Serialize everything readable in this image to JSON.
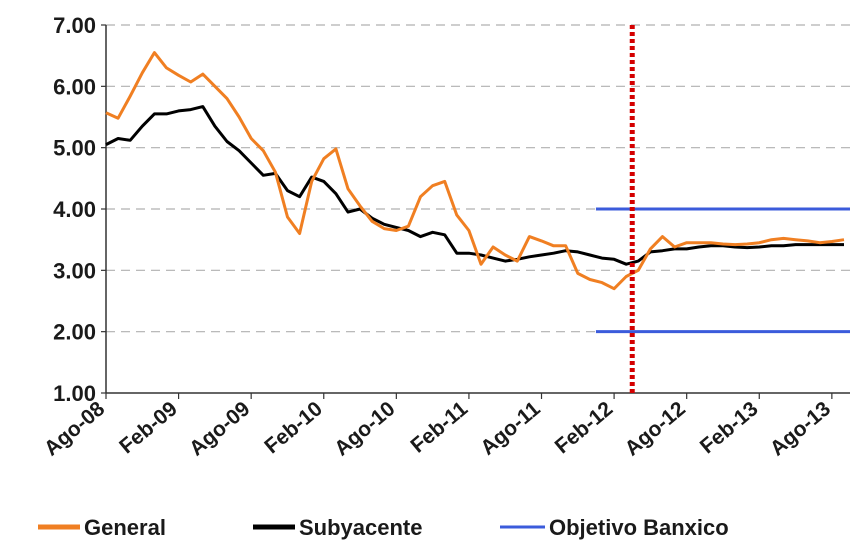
{
  "chart_data": {
    "type": "line",
    "title": "",
    "xlabel": "",
    "ylabel": "",
    "ylim": [
      1.0,
      7.0
    ],
    "yticks": [
      "1.00",
      "2.00",
      "3.00",
      "4.00",
      "5.00",
      "6.00",
      "7.00"
    ],
    "xticks": [
      "Ago-08",
      "Feb-09",
      "Ago-09",
      "Feb-10",
      "Ago-10",
      "Feb-11",
      "Ago-11",
      "Feb-12",
      "Ago-12",
      "Feb-13",
      "Ago-13"
    ],
    "grid": "horizontal dashed",
    "legend_position": "bottom",
    "vertical_marker": {
      "x": 43.5,
      "color": "#d40000",
      "style": "dotted"
    },
    "colors": {
      "general": "#f07f22",
      "subyacente": "#000000",
      "objetivo": "#3b5bdb",
      "marker": "#d40000",
      "grid": "#b0b0b0"
    },
    "series": [
      {
        "name": "General",
        "color": "#f07f22",
        "x": [
          0,
          1,
          2,
          3,
          4,
          5,
          6,
          7,
          8,
          9,
          10,
          11,
          12,
          13,
          14,
          15,
          16,
          17,
          18,
          19,
          20,
          21,
          22,
          23,
          24,
          25,
          26,
          27,
          28,
          29,
          30,
          31,
          32,
          33,
          34,
          35,
          36,
          37,
          38,
          39,
          40,
          41,
          42,
          43,
          44,
          45,
          46,
          47,
          48,
          49,
          50,
          51,
          52,
          53,
          54,
          55,
          56,
          57,
          58,
          59,
          60,
          61
        ],
        "values": [
          5.57,
          5.48,
          5.84,
          6.22,
          6.55,
          6.3,
          6.18,
          6.07,
          6.2,
          6.0,
          5.8,
          5.5,
          5.15,
          4.95,
          4.6,
          3.87,
          3.6,
          4.45,
          4.82,
          4.98,
          4.33,
          4.05,
          3.8,
          3.68,
          3.65,
          3.72,
          4.2,
          4.38,
          4.45,
          3.9,
          3.65,
          3.1,
          3.38,
          3.25,
          3.15,
          3.55,
          3.48,
          3.4,
          3.4,
          2.95,
          2.85,
          2.8,
          2.7,
          2.9,
          3.0,
          3.35,
          3.55,
          3.38,
          3.45,
          3.45,
          3.45,
          3.43,
          3.42,
          3.43,
          3.45,
          3.5,
          3.52,
          3.5,
          3.48,
          3.45,
          3.47,
          3.5
        ]
      },
      {
        "name": "Subyacente",
        "color": "#000000",
        "x": [
          0,
          1,
          2,
          3,
          4,
          5,
          6,
          7,
          8,
          9,
          10,
          11,
          12,
          13,
          14,
          15,
          16,
          17,
          18,
          19,
          20,
          21,
          22,
          23,
          24,
          25,
          26,
          27,
          28,
          29,
          30,
          31,
          32,
          33,
          34,
          35,
          36,
          37,
          38,
          39,
          40,
          41,
          42,
          43,
          44,
          45,
          46,
          47,
          48,
          49,
          50,
          51,
          52,
          53,
          54,
          55,
          56,
          57,
          58,
          59,
          60,
          61
        ],
        "values": [
          5.05,
          5.15,
          5.12,
          5.35,
          5.55,
          5.55,
          5.6,
          5.62,
          5.67,
          5.35,
          5.1,
          4.95,
          4.75,
          4.55,
          4.58,
          4.3,
          4.2,
          4.52,
          4.45,
          4.25,
          3.95,
          4.0,
          3.85,
          3.75,
          3.7,
          3.65,
          3.55,
          3.62,
          3.58,
          3.28,
          3.28,
          3.25,
          3.2,
          3.15,
          3.18,
          3.22,
          3.25,
          3.28,
          3.32,
          3.3,
          3.25,
          3.2,
          3.18,
          3.1,
          3.15,
          3.3,
          3.32,
          3.35,
          3.35,
          3.38,
          3.4,
          3.4,
          3.38,
          3.37,
          3.38,
          3.4,
          3.4,
          3.42,
          3.42,
          3.42,
          3.42,
          3.42
        ]
      },
      {
        "name": "Objetivo Banxico",
        "color": "#3b5bdb",
        "bands": [
          {
            "x": [
              40.5,
              62
            ],
            "y": 4.0
          },
          {
            "x": [
              40.5,
              62
            ],
            "y": 2.0
          }
        ]
      }
    ]
  }
}
